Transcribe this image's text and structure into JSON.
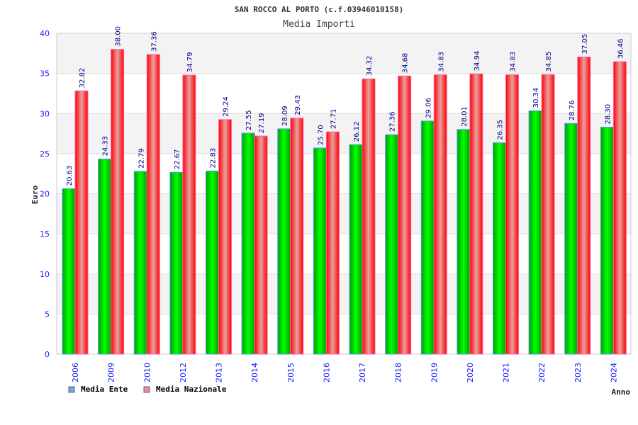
{
  "chart_data": {
    "type": "bar",
    "title": "SAN ROCCO AL PORTO (c.f.03946010158)",
    "subtitle": "Media Importi",
    "xlabel": "Anno",
    "ylabel": "Euro",
    "ylim": [
      0,
      40
    ],
    "yticks": [
      "0",
      "5",
      "10",
      "15",
      "20",
      "25",
      "30",
      "35",
      "40"
    ],
    "grid": true,
    "legend_position": "bottom-left",
    "categories": [
      "2006",
      "2009",
      "2010",
      "2012",
      "2013",
      "2014",
      "2015",
      "2016",
      "2017",
      "2018",
      "2019",
      "2020",
      "2021",
      "2022",
      "2023",
      "2024"
    ],
    "series": [
      {
        "name": "Media Ente",
        "color": "#00c000",
        "legend_color": "#6aa8e8",
        "values": [
          20.63,
          24.33,
          22.79,
          22.67,
          22.83,
          27.55,
          28.09,
          25.7,
          26.12,
          27.36,
          29.06,
          28.01,
          26.35,
          30.34,
          28.76,
          28.3
        ],
        "labels": [
          "20.63",
          "24.33",
          "22.79",
          "22.67",
          "22.83",
          "27.55",
          "28.09",
          "25.70",
          "26.12",
          "27.36",
          "29.06",
          "28.01",
          "26.35",
          "30.34",
          "28.76",
          "28.30"
        ]
      },
      {
        "name": "Media Nazionale",
        "color": "#ff0000",
        "legend_color": "#e884b8",
        "values": [
          32.82,
          38.0,
          37.36,
          34.79,
          29.24,
          27.19,
          29.43,
          27.71,
          34.32,
          34.68,
          34.83,
          34.94,
          34.83,
          34.85,
          37.05,
          36.46
        ],
        "labels": [
          "32.82",
          "38.00",
          "37.36",
          "34.79",
          "29.24",
          "27.19",
          "29.43",
          "27.71",
          "34.32",
          "34.68",
          "34.83",
          "34.94",
          "34.83",
          "34.85",
          "37.05",
          "36.46"
        ]
      }
    ]
  }
}
